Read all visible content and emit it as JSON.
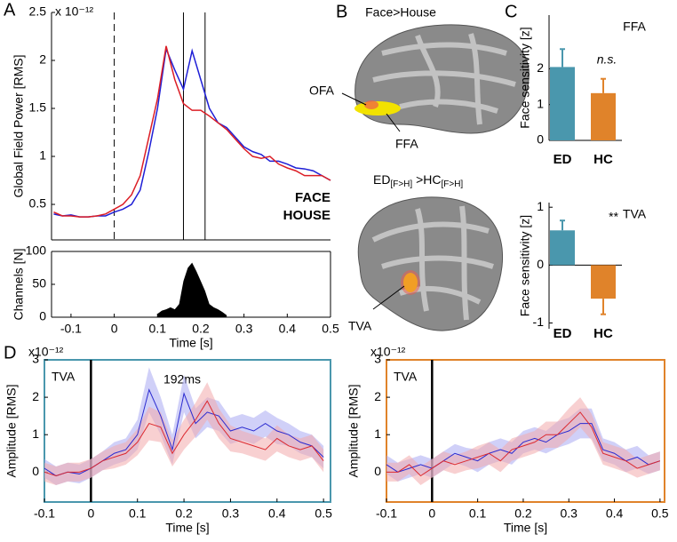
{
  "panel_labels": [
    "A",
    "B",
    "C",
    "D"
  ],
  "panel_b": {
    "title_top": "Face>House",
    "ofa": "OFA",
    "ffa": "FFA",
    "title_bottom": [
      "ED",
      "[F>H]",
      " >HC",
      "[F>H]"
    ],
    "tva": "TVA"
  },
  "chart_data": [
    {
      "type": "line",
      "multiplier": "x 10⁻¹²",
      "ylabel": "Global Field Power [RMS]",
      "xlim": [
        -0.145,
        0.5
      ],
      "ylim": [
        0.13,
        2.5
      ],
      "yticks": [
        0.5,
        1,
        1.5,
        2,
        2.5
      ],
      "vlines": [
        0,
        0.16,
        0.21
      ],
      "x": [
        -0.14,
        -0.12,
        -0.1,
        -0.08,
        -0.06,
        -0.04,
        -0.02,
        0,
        0.02,
        0.04,
        0.06,
        0.08,
        0.1,
        0.12,
        0.14,
        0.16,
        0.18,
        0.2,
        0.22,
        0.24,
        0.26,
        0.28,
        0.3,
        0.32,
        0.34,
        0.36,
        0.38,
        0.4,
        0.42,
        0.44,
        0.46,
        0.48,
        0.5
      ],
      "series": [
        {
          "name": "FACE",
          "color": "#1f1fd6",
          "values": [
            0.4,
            0.38,
            0.39,
            0.37,
            0.37,
            0.38,
            0.38,
            0.42,
            0.45,
            0.5,
            0.65,
            1.05,
            1.5,
            2.12,
            1.9,
            1.7,
            2.1,
            1.8,
            1.5,
            1.35,
            1.3,
            1.2,
            1.1,
            1.05,
            1.02,
            0.95,
            0.95,
            0.92,
            0.88,
            0.87,
            0.85,
            0.8,
            0.75
          ]
        },
        {
          "name": "HOUSE",
          "color": "#dc1e26",
          "values": [
            0.42,
            0.38,
            0.38,
            0.37,
            0.37,
            0.38,
            0.4,
            0.45,
            0.5,
            0.6,
            0.8,
            1.2,
            1.6,
            2.15,
            1.8,
            1.55,
            1.48,
            1.48,
            1.42,
            1.35,
            1.28,
            1.18,
            1.08,
            1.0,
            0.98,
            1.0,
            0.92,
            0.88,
            0.85,
            0.8,
            0.8,
            0.8,
            0.75
          ]
        }
      ]
    },
    {
      "type": "area",
      "ylabel": "Channels [N]",
      "xlabel": "Time [s]",
      "color": "#000000",
      "xlim": [
        -0.145,
        0.5
      ],
      "ylim": [
        0,
        100
      ],
      "yticks": [
        0,
        50,
        100
      ],
      "xticks": [
        -0.1,
        0,
        0.1,
        0.2,
        0.3,
        0.4,
        0.5
      ],
      "x": [
        0.1,
        0.11,
        0.12,
        0.13,
        0.14,
        0.15,
        0.16,
        0.17,
        0.18,
        0.19,
        0.2,
        0.21,
        0.22,
        0.23,
        0.24,
        0.25,
        0.26
      ],
      "values": [
        5,
        10,
        12,
        15,
        12,
        20,
        55,
        75,
        83,
        70,
        55,
        40,
        20,
        15,
        12,
        8,
        3
      ]
    },
    {
      "type": "bar",
      "title": "FFA",
      "ylabel": "Face sensitivity [z]",
      "annotation": "n.s.",
      "categories": [
        "ED",
        "HC"
      ],
      "values": [
        2.05,
        1.32
      ],
      "errors": [
        0.5,
        0.4
      ],
      "colors": [
        "#4a97ad",
        "#e0832a"
      ],
      "ylim": [
        0,
        3.5
      ],
      "yticks": [
        0,
        1,
        2
      ]
    },
    {
      "type": "bar",
      "title": "TVA",
      "ylabel": "Face sensitivity [z]",
      "annotation": "**",
      "categories": [
        "ED",
        "HC"
      ],
      "values": [
        0.6,
        -0.58
      ],
      "errors": [
        0.17,
        0.27
      ],
      "colors": [
        "#4a97ad",
        "#e0832a"
      ],
      "ylim": [
        -1.1,
        1.08
      ],
      "yticks": [
        -1,
        0,
        1
      ]
    },
    {
      "type": "band",
      "label": "TVA",
      "annotation": "192ms",
      "multiplier": "x10⁻¹²",
      "ylabel": "Amplitude [RMS]",
      "xlabel": "Time [s]",
      "frame_color": "#4a97ad",
      "xlim": [
        -0.1,
        0.515
      ],
      "ylim": [
        -0.8,
        3
      ],
      "yticks": [
        0,
        1,
        2,
        3
      ],
      "xticks": [
        -0.1,
        0,
        0.1,
        0.2,
        0.3,
        0.4,
        0.5
      ],
      "vlines": [
        0
      ],
      "x": [
        -0.1,
        -0.075,
        -0.05,
        -0.025,
        0,
        0.025,
        0.05,
        0.075,
        0.1,
        0.125,
        0.15,
        0.175,
        0.2,
        0.225,
        0.25,
        0.275,
        0.3,
        0.325,
        0.35,
        0.375,
        0.4,
        0.425,
        0.45,
        0.475,
        0.5
      ],
      "series": [
        {
          "name": "FACE",
          "color": "#2a2ad0",
          "band_color": "#a9a9f2",
          "values": [
            0.1,
            -0.1,
            0,
            -0.05,
            0.1,
            0.3,
            0.5,
            0.6,
            1.0,
            2.2,
            1.5,
            0.6,
            2.1,
            1.3,
            1.6,
            1.5,
            1.1,
            1.2,
            1.1,
            1.3,
            1.1,
            1.0,
            0.8,
            0.7,
            0.4
          ],
          "errors": [
            0.25,
            0.25,
            0.25,
            0.25,
            0.25,
            0.25,
            0.3,
            0.3,
            0.4,
            0.6,
            0.5,
            0.4,
            0.5,
            0.4,
            0.4,
            0.4,
            0.35,
            0.35,
            0.35,
            0.35,
            0.35,
            0.3,
            0.3,
            0.3,
            0.3
          ]
        },
        {
          "name": "HOUSE",
          "color": "#dc2a30",
          "band_color": "#f2a9ab",
          "values": [
            0,
            -0.1,
            0,
            0,
            0.1,
            0.3,
            0.4,
            0.5,
            0.8,
            1.3,
            1.2,
            0.5,
            1.0,
            1.4,
            1.9,
            1.3,
            0.9,
            0.8,
            0.7,
            0.6,
            0.9,
            0.7,
            0.6,
            0.7,
            0.3
          ],
          "errors": [
            0.25,
            0.25,
            0.25,
            0.25,
            0.25,
            0.25,
            0.3,
            0.3,
            0.35,
            0.45,
            0.4,
            0.35,
            0.4,
            0.45,
            0.5,
            0.4,
            0.35,
            0.3,
            0.3,
            0.3,
            0.35,
            0.3,
            0.3,
            0.3,
            0.3
          ]
        }
      ]
    },
    {
      "type": "band",
      "label": "TVA",
      "multiplier": "x10⁻¹²",
      "ylabel": "Amplitude [RMS]",
      "xlabel": "Time [s]",
      "frame_color": "#e0832a",
      "xlim": [
        -0.1,
        0.51
      ],
      "ylim": [
        -0.8,
        3
      ],
      "yticks": [
        0,
        1,
        2,
        3
      ],
      "xticks": [
        -0.1,
        0,
        0.1,
        0.2,
        0.3,
        0.4,
        0.5
      ],
      "vlines": [
        0
      ],
      "x": [
        -0.1,
        -0.075,
        -0.05,
        -0.025,
        0,
        0.025,
        0.05,
        0.075,
        0.1,
        0.125,
        0.15,
        0.175,
        0.2,
        0.225,
        0.25,
        0.275,
        0.3,
        0.325,
        0.35,
        0.375,
        0.4,
        0.425,
        0.45,
        0.475,
        0.5
      ],
      "series": [
        {
          "name": "FACE",
          "color": "#2a2ad0",
          "band_color": "#a9a9f2",
          "values": [
            0.2,
            0,
            0.1,
            0.2,
            0.1,
            0.3,
            0.5,
            0.4,
            0.3,
            0.5,
            0.6,
            0.5,
            0.8,
            0.9,
            0.8,
            1.0,
            1.1,
            1.3,
            1.3,
            0.6,
            0.5,
            0.3,
            0.4,
            0.2,
            0.3
          ],
          "errors": [
            0.25,
            0.25,
            0.25,
            0.25,
            0.25,
            0.25,
            0.25,
            0.25,
            0.3,
            0.3,
            0.3,
            0.3,
            0.3,
            0.3,
            0.3,
            0.35,
            0.35,
            0.4,
            0.4,
            0.3,
            0.3,
            0.3,
            0.3,
            0.25,
            0.25
          ]
        },
        {
          "name": "HOUSE",
          "color": "#dc2a30",
          "band_color": "#f2a9ab",
          "values": [
            0,
            0,
            0.2,
            -0.1,
            0.1,
            0.3,
            0.2,
            0.3,
            0.4,
            0.5,
            0.3,
            0.6,
            0.7,
            0.8,
            1.0,
            1.0,
            1.3,
            1.6,
            1.2,
            0.5,
            0.4,
            0.3,
            0.1,
            0.2,
            0.3
          ],
          "errors": [
            0.25,
            0.25,
            0.25,
            0.25,
            0.25,
            0.25,
            0.25,
            0.25,
            0.3,
            0.3,
            0.3,
            0.3,
            0.3,
            0.3,
            0.35,
            0.35,
            0.4,
            0.4,
            0.35,
            0.3,
            0.3,
            0.3,
            0.25,
            0.25,
            0.25
          ]
        }
      ]
    }
  ]
}
